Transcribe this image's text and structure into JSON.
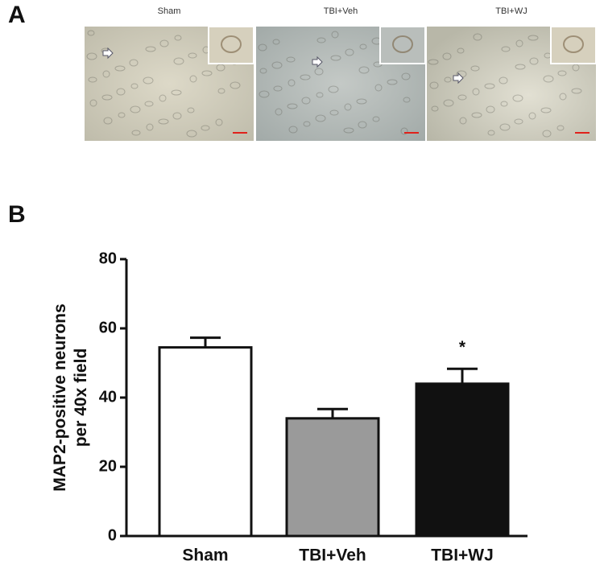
{
  "panel_labels": [
    "A",
    "B"
  ],
  "image_captions": [
    "Sham",
    "TBI+Veh",
    "TBI+WJ"
  ],
  "chart_data": {
    "type": "bar",
    "y_label": [
      "MAP2-positive neurons",
      "per 40x field"
    ],
    "categories": [
      "Sham",
      "TBI+Veh",
      "TBI+WJ"
    ],
    "values": [
      54.5,
      34,
      44
    ],
    "errors": [
      2.8,
      2.7,
      4.3
    ],
    "colors": [
      "#ffffff",
      "#9a9a9a",
      "#111111"
    ],
    "ylim": [
      0,
      80
    ],
    "yticks": [
      0,
      20,
      40,
      60,
      80
    ],
    "annotations": [
      {
        "text": "*",
        "category": "TBI+WJ"
      }
    ]
  }
}
